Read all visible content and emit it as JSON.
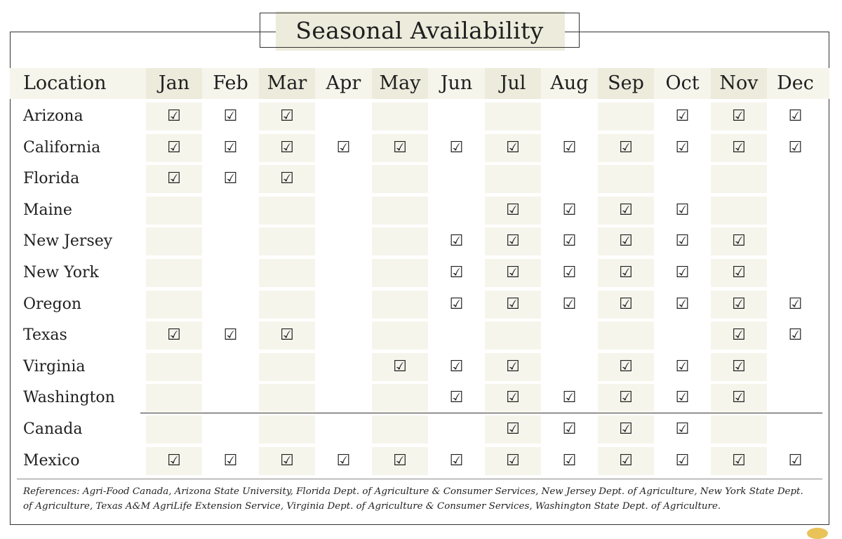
{
  "title": "Seasonal Availability",
  "chart_data": {
    "type": "table",
    "title": "Seasonal Availability",
    "row_header": "Location",
    "columns": [
      "Jan",
      "Feb",
      "Mar",
      "Apr",
      "May",
      "Jun",
      "Jul",
      "Aug",
      "Sep",
      "Oct",
      "Nov",
      "Dec"
    ],
    "check_symbol": "☑",
    "rows": [
      {
        "location": "Arizona",
        "available": [
          1,
          1,
          1,
          0,
          0,
          0,
          0,
          0,
          0,
          1,
          1,
          1
        ]
      },
      {
        "location": "California",
        "available": [
          1,
          1,
          1,
          1,
          1,
          1,
          1,
          1,
          1,
          1,
          1,
          1
        ]
      },
      {
        "location": "Florida",
        "available": [
          1,
          1,
          1,
          0,
          0,
          0,
          0,
          0,
          0,
          0,
          0,
          0
        ]
      },
      {
        "location": "Maine",
        "available": [
          0,
          0,
          0,
          0,
          0,
          0,
          1,
          1,
          1,
          1,
          0,
          0
        ]
      },
      {
        "location": "New Jersey",
        "available": [
          0,
          0,
          0,
          0,
          0,
          1,
          1,
          1,
          1,
          1,
          1,
          0
        ]
      },
      {
        "location": "New York",
        "available": [
          0,
          0,
          0,
          0,
          0,
          1,
          1,
          1,
          1,
          1,
          1,
          0
        ]
      },
      {
        "location": "Oregon",
        "available": [
          0,
          0,
          0,
          0,
          0,
          1,
          1,
          1,
          1,
          1,
          1,
          1
        ]
      },
      {
        "location": "Texas",
        "available": [
          1,
          1,
          1,
          0,
          0,
          0,
          0,
          0,
          0,
          0,
          1,
          1
        ]
      },
      {
        "location": "Virginia",
        "available": [
          0,
          0,
          0,
          0,
          1,
          1,
          1,
          0,
          1,
          1,
          1,
          0
        ]
      },
      {
        "location": "Washington",
        "available": [
          0,
          0,
          0,
          0,
          0,
          1,
          1,
          1,
          1,
          1,
          1,
          0
        ]
      },
      {
        "location": "Canada",
        "available": [
          0,
          0,
          0,
          0,
          0,
          0,
          1,
          1,
          1,
          1,
          0,
          0
        ]
      },
      {
        "location": "Mexico",
        "available": [
          1,
          1,
          1,
          1,
          1,
          1,
          1,
          1,
          1,
          1,
          1,
          1
        ]
      }
    ],
    "colors": {
      "header_band": "#f6f5ec",
      "shaded_column": "#ecebdc",
      "cell_shade": "#f6f5ec",
      "rule": "#333333"
    }
  },
  "references": "References: Agri-Food Canada, Arizona State University, Florida Dept. of Agriculture & Consumer Services, New Jersey Dept. of Agriculture, New York State Dept. of Agriculture, Texas A&M AgriLife Extension Service, Virginia Dept. of Agriculture & Consumer Services, Washington State Dept. of Agriculture."
}
